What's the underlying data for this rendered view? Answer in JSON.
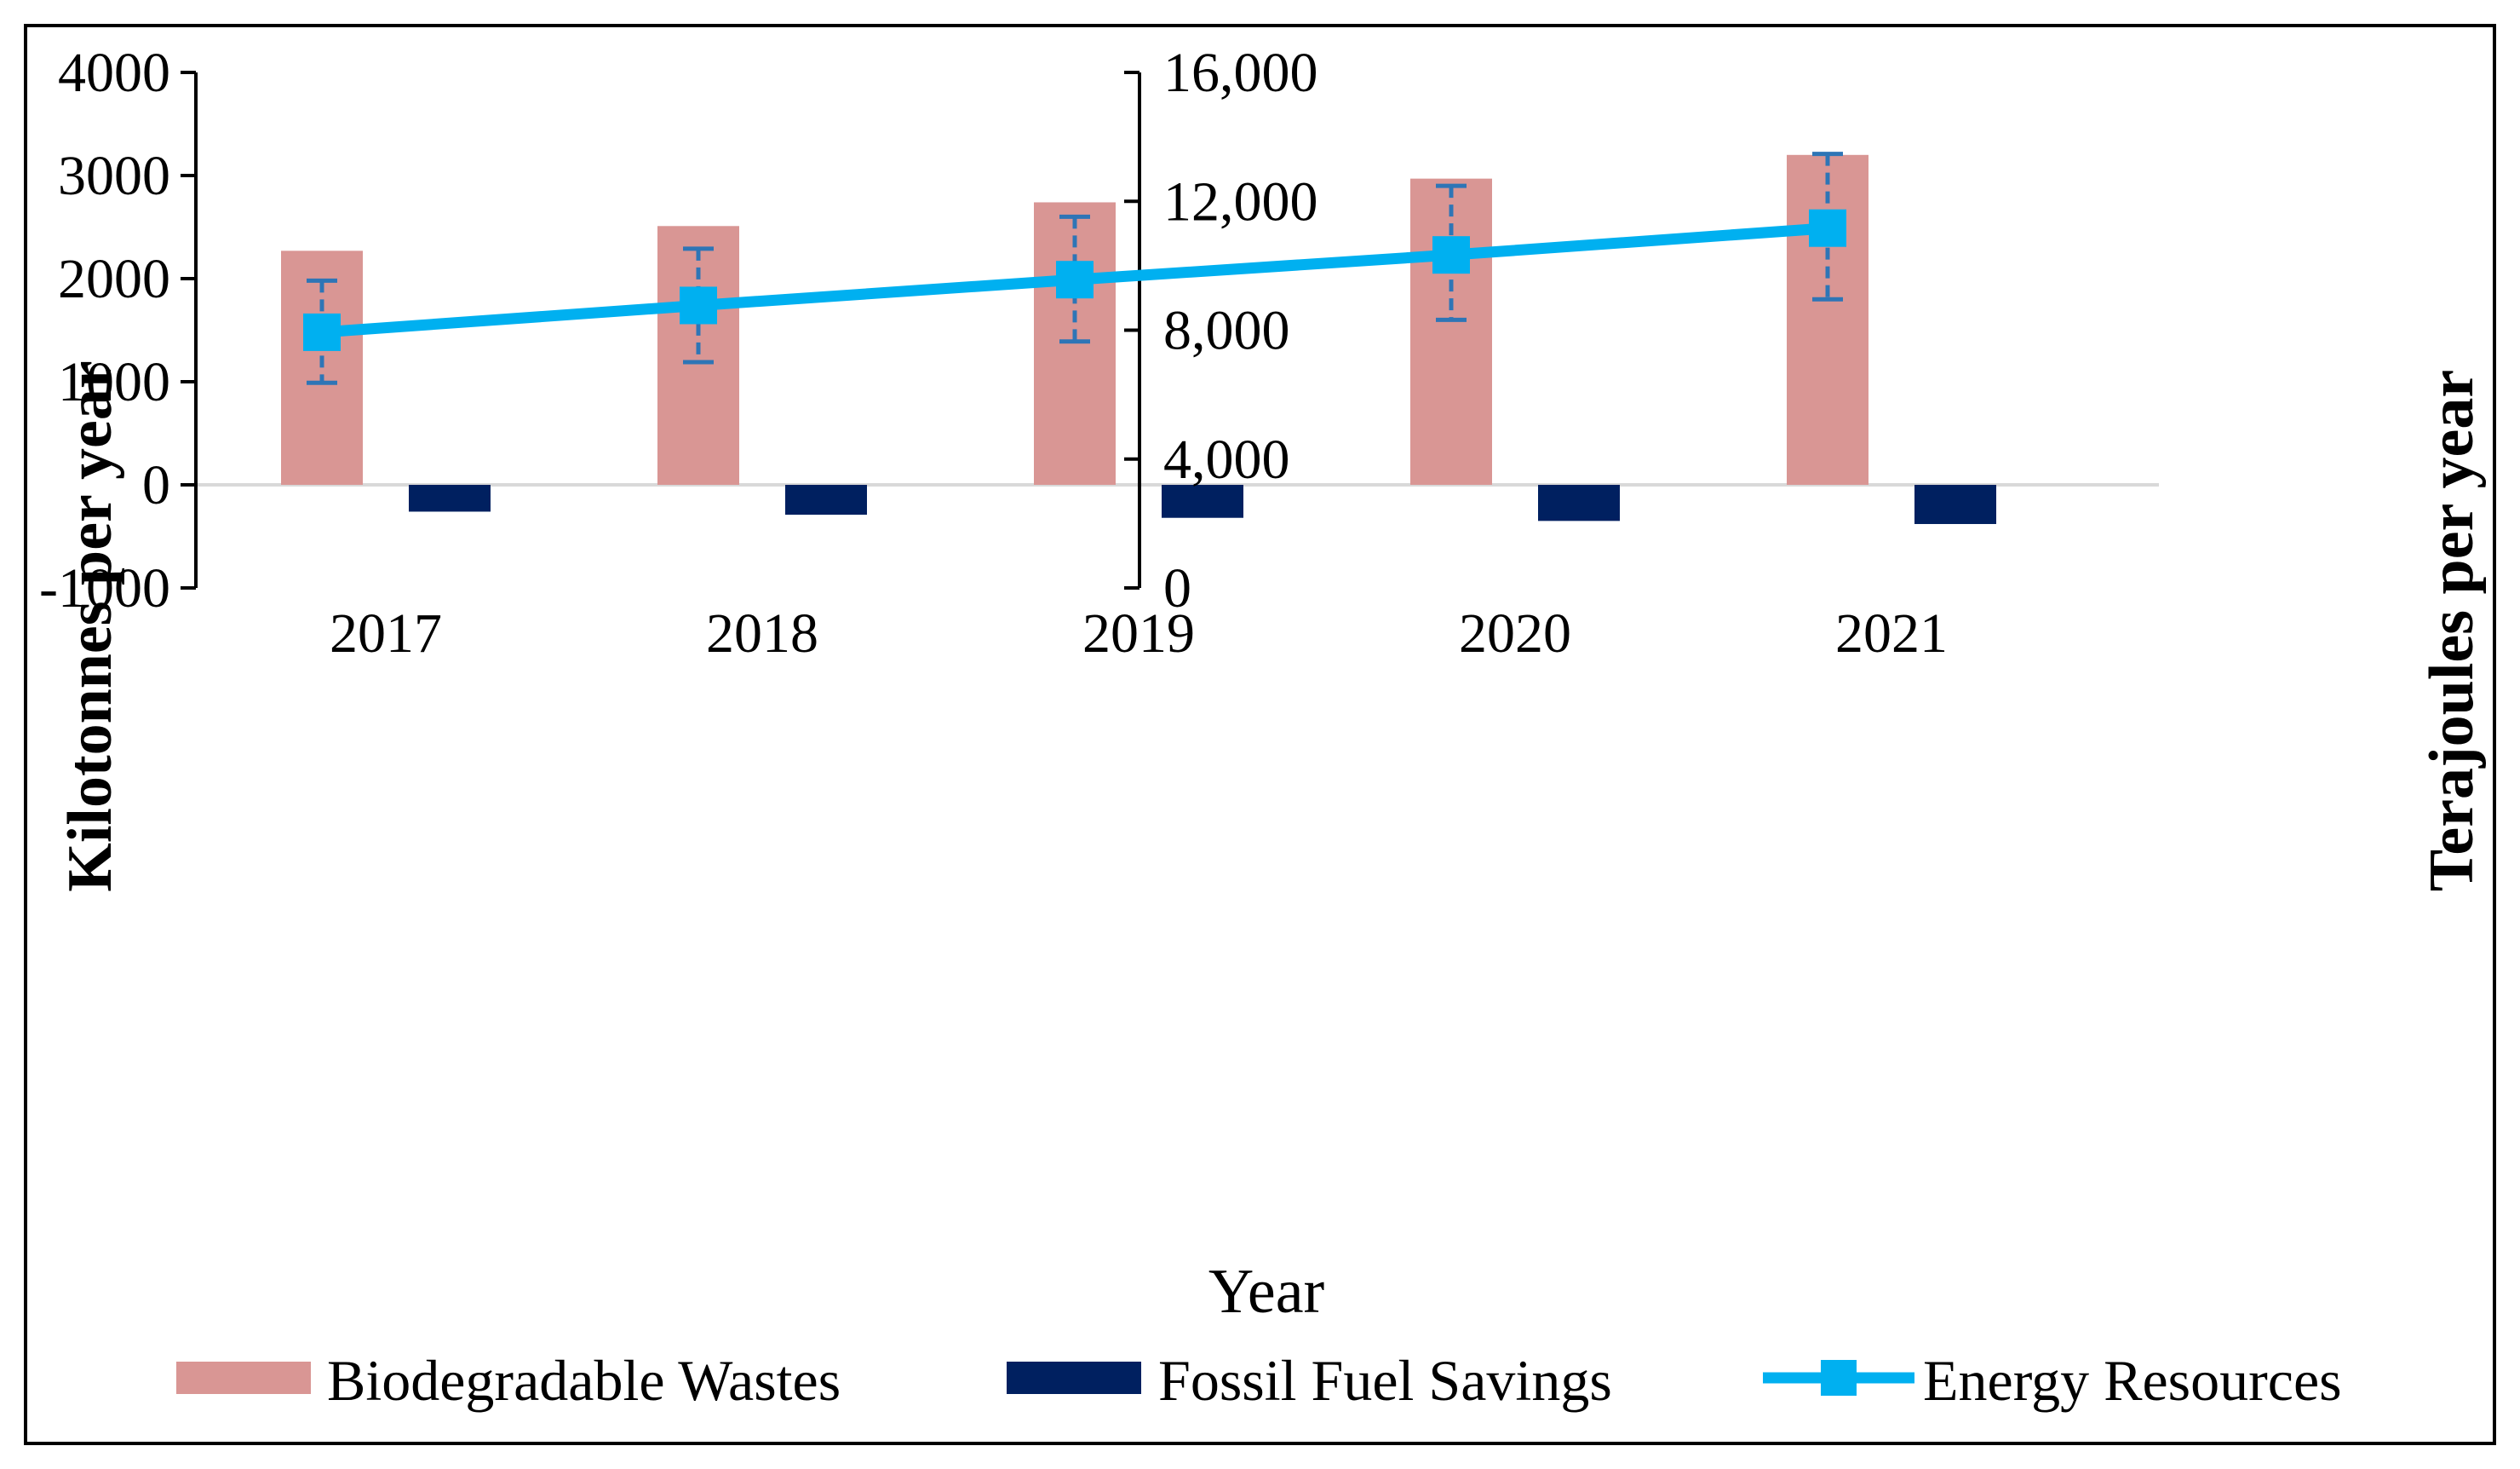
{
  "chart_data": {
    "type": "bar",
    "title": "",
    "xlabel": "Year",
    "ylabel": "Kilotonnes per year",
    "y2label": "Terajoules per year",
    "categories": [
      "2017",
      "2018",
      "2019",
      "2020",
      "2021"
    ],
    "ylim": [
      -1000,
      4000
    ],
    "y2lim": [
      0,
      16000
    ],
    "yticks": [
      -1000,
      0,
      1000,
      2000,
      3000,
      4000
    ],
    "yticklabels": [
      "-1000",
      "0",
      "1000",
      "2000",
      "3000",
      "4000"
    ],
    "y2ticks": [
      0,
      4000,
      8000,
      12000,
      16000
    ],
    "y2ticklabels": [
      "0",
      "4,000",
      "8,000",
      "12,000",
      "16,000"
    ],
    "grid": false,
    "legend_position": "bottom",
    "series": [
      {
        "name": "Biodegradable Wastes",
        "kind": "bar",
        "axis": "left",
        "color": "#d99694",
        "values": [
          2270,
          2510,
          2740,
          2970,
          3200
        ]
      },
      {
        "name": "Fossil Fuel Savings",
        "kind": "bar",
        "axis": "left",
        "color": "#002060",
        "values": [
          -260,
          -290,
          -320,
          -350,
          -380
        ]
      },
      {
        "name": "Energy Resources",
        "kind": "line",
        "axis": "left",
        "color": "#00b0f0",
        "marker": "square",
        "values": [
          1480,
          1740,
          1990,
          2230,
          2490
        ],
        "error_low": [
          990,
          1190,
          1390,
          1600,
          1800
        ],
        "error_high": [
          1980,
          2290,
          2600,
          2900,
          3210
        ],
        "error_color": "#2e75b6"
      }
    ]
  }
}
